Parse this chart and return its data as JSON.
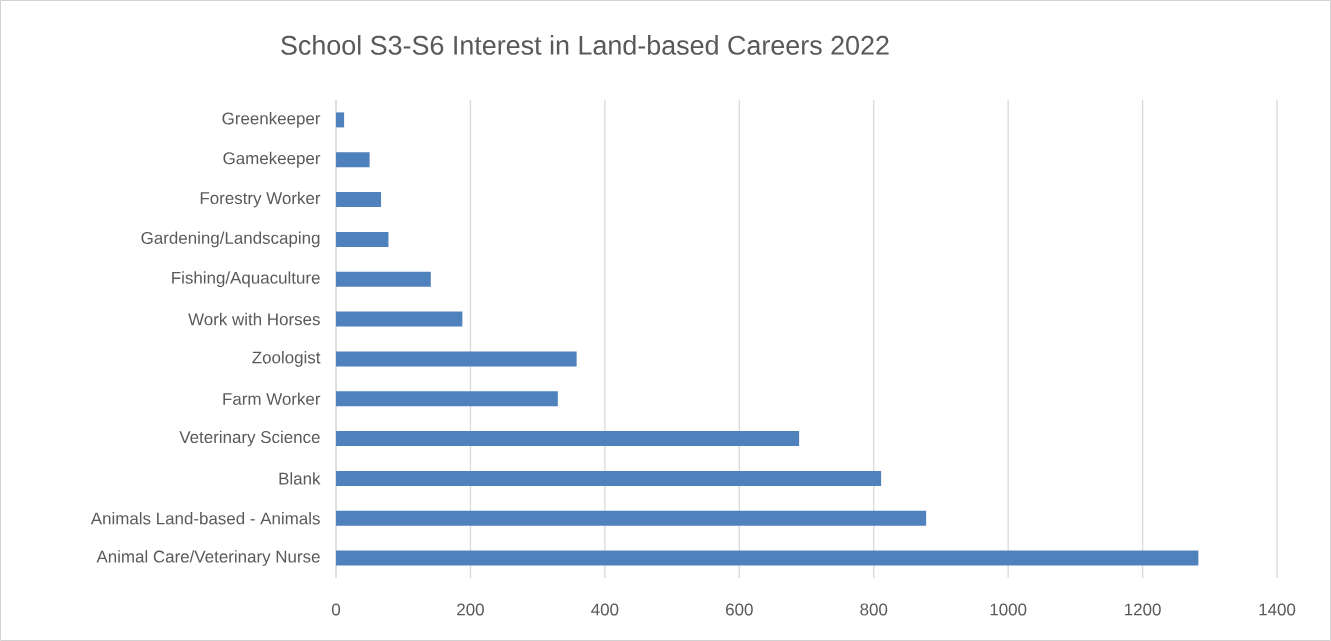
{
  "chart_data": {
    "type": "bar",
    "orientation": "horizontal",
    "title": "School S3-S6  Interest in Land-based Careers 2022",
    "categories": [
      "Greenkeeper",
      "Gamekeeper",
      "Forestry Worker",
      "Gardening/Landscaping",
      "Fishing/Aquaculture",
      "Work with Horses",
      "Zoologist",
      "Farm Worker",
      "Veterinary Science",
      "Blank",
      "Animals Land-based - Animals",
      "Animal Care/Veterinary Nurse"
    ],
    "values": [
      12,
      50,
      67,
      78,
      141,
      188,
      358,
      330,
      689,
      811,
      878,
      1283
    ],
    "color": "#4f81bd",
    "xlim": [
      0,
      1400
    ],
    "xticks": [
      0,
      200,
      400,
      600,
      800,
      1000,
      1200,
      1400
    ],
    "grid": "x"
  }
}
